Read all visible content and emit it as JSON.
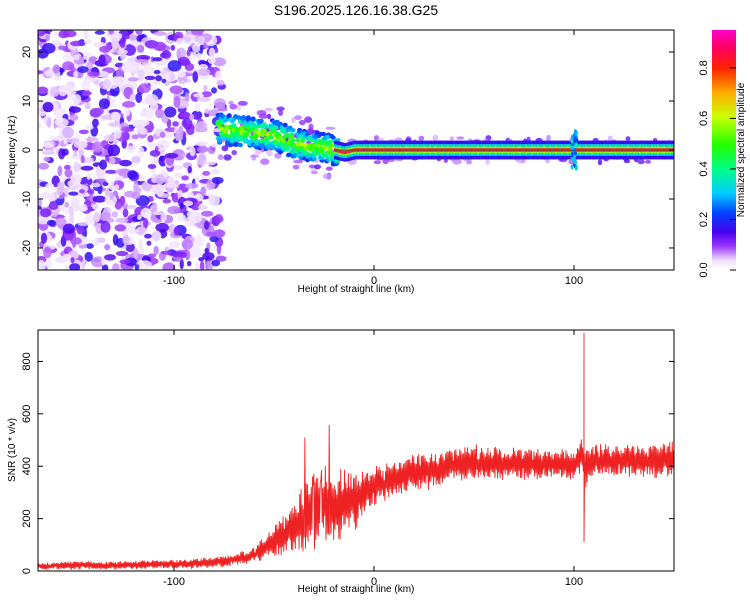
{
  "title": "S196.2025.126.16.38.G25",
  "colors": {
    "snr_line": "#ee2222",
    "background": "#ffffff",
    "axis": "#000000"
  },
  "chart_data": [
    {
      "type": "heatmap",
      "xlabel": "Height of straight line (km)",
      "ylabel": "Frequency (Hz)",
      "xlim": [
        -168,
        150
      ],
      "ylim": [
        -24.5,
        24.5
      ],
      "xticks": [
        -100,
        0,
        100
      ],
      "yticks": [
        -20,
        -10,
        0,
        10,
        20
      ],
      "colorbar": {
        "label": "Normalized spectral amplitude",
        "range": [
          0.0,
          0.95
        ],
        "ticks": [
          "0.0",
          "0.2",
          "0.4",
          "0.6",
          "0.8"
        ],
        "colormap": "rainbow (white-purple-blue-cyan-green-yellow-red-magenta)"
      },
      "regions": [
        {
          "x_range": [
            -168,
            -78
          ],
          "frequency_range": [
            -24.5,
            24.5
          ],
          "amplitude": "0.05-0.2 (noise)"
        },
        {
          "x_range": [
            -78,
            -20
          ],
          "frequency_range": [
            -5,
            8
          ],
          "amplitude": "0.3-0.6"
        },
        {
          "x_range": [
            -20,
            150
          ],
          "frequency_range": [
            -1,
            1
          ],
          "amplitude": "0.8-0.95"
        }
      ],
      "ridge": {
        "x": [
          -78,
          -70,
          -60,
          -50,
          -40,
          -30,
          -25,
          -20,
          -15,
          -10,
          0,
          20,
          50,
          100,
          150
        ],
        "frequency": [
          4.5,
          4.0,
          3.5,
          3.0,
          1.5,
          0.5,
          0.5,
          0.0,
          -0.5,
          0.0,
          0.0,
          0.0,
          0.0,
          0.0,
          0.0
        ]
      }
    },
    {
      "type": "line",
      "xlabel": "Height of straight line (km)",
      "ylabel": "SNR (10 * v/v)",
      "xlim": [
        -168,
        150
      ],
      "ylim": [
        0,
        920
      ],
      "xticks": [
        -100,
        0,
        100
      ],
      "yticks": [
        0,
        200,
        400,
        600,
        800
      ],
      "series": [
        {
          "x": [
            -168,
            -150,
            -130,
            -110,
            -90,
            -80,
            -70,
            -60,
            -55,
            -50,
            -45,
            -40,
            -35,
            -30,
            -25,
            -20,
            -15,
            -10,
            -5,
            0,
            5,
            10,
            20,
            30,
            40,
            50,
            60,
            70,
            80,
            90,
            100,
            104,
            106,
            110,
            120,
            130,
            140,
            150
          ],
          "y": [
            18,
            22,
            22,
            25,
            28,
            32,
            45,
            60,
            85,
            110,
            140,
            170,
            200,
            235,
            255,
            230,
            270,
            260,
            295,
            325,
            330,
            350,
            375,
            385,
            405,
            410,
            410,
            408,
            408,
            405,
            405,
            455,
            390,
            420,
            420,
            425,
            420,
            430
          ],
          "spread": [
            12,
            14,
            14,
            15,
            16,
            18,
            20,
            25,
            40,
            55,
            70,
            90,
            110,
            130,
            140,
            120,
            110,
            95,
            80,
            70,
            65,
            60,
            60,
            60,
            60,
            60,
            55,
            55,
            55,
            55,
            60,
            60,
            60,
            55,
            55,
            55,
            55,
            55
          ]
        }
      ],
      "annotations": [
        {
          "x": 105,
          "y": 910,
          "note": "peak spike"
        },
        {
          "x": 105,
          "y": 110,
          "note": "dip"
        }
      ]
    }
  ]
}
